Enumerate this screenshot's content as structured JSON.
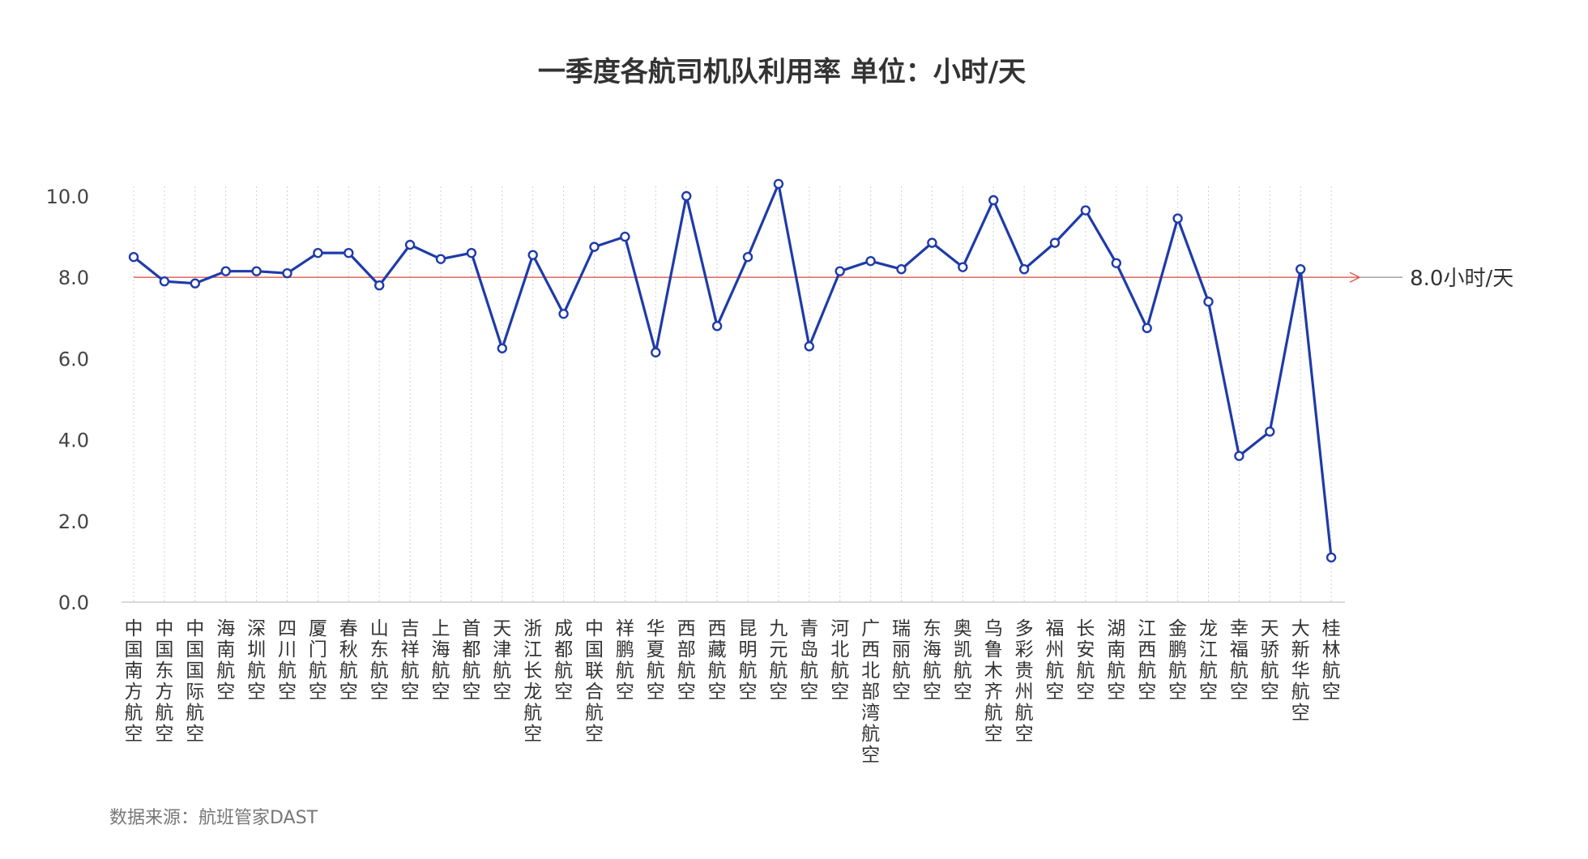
{
  "chart_data": {
    "type": "line",
    "title": "一季度各航司机队利用率 单位：小时/天",
    "xlabel": "",
    "ylabel": "",
    "ylim": [
      0,
      10
    ],
    "yticks": [
      "0.0",
      "2.0",
      "4.0",
      "6.0",
      "8.0",
      "10.0"
    ],
    "grid": "vertical-dotted",
    "categories": [
      "中国南方航空",
      "中国东方航空",
      "中国国际航空",
      "海南航空",
      "深圳航空",
      "四川航空",
      "厦门航空",
      "春秋航空",
      "山东航空",
      "吉祥航空",
      "上海航空",
      "首都航空",
      "天津航空",
      "浙江长龙航空",
      "成都航空",
      "中国联合航空",
      "祥鹏航空",
      "华夏航空",
      "西部航空",
      "西藏航空",
      "昆明航空",
      "九元航空",
      "青岛航空",
      "河北航空",
      "广西北部湾航空",
      "瑞丽航空",
      "东海航空",
      "奥凯航空",
      "乌鲁木齐航空",
      "多彩贵州航空",
      "福州航空",
      "长安航空",
      "湖南航空",
      "江西航空",
      "金鹏航空",
      "龙江航空",
      "幸福航空",
      "天骄航空",
      "大新华航空",
      "桂林航空"
    ],
    "series": [
      {
        "values": [
          8.5,
          7.9,
          7.85,
          8.15,
          8.15,
          8.1,
          8.6,
          8.6,
          7.8,
          8.8,
          8.45,
          8.6,
          6.25,
          8.55,
          7.1,
          8.75,
          9.0,
          6.15,
          10.0,
          6.8,
          8.5,
          10.3,
          6.3,
          8.15,
          8.4,
          8.2,
          8.85,
          8.25,
          9.9,
          8.2,
          8.85,
          9.65,
          8.35,
          6.75,
          9.45,
          7.4,
          3.6,
          4.2,
          8.2,
          1.1
        ],
        "color": "#1f3ba8"
      }
    ],
    "reference_line": {
      "value": 8.0,
      "label": "8.0小时/天",
      "color": "#e05a4f"
    }
  },
  "source": "数据来源：航班管家DAST"
}
